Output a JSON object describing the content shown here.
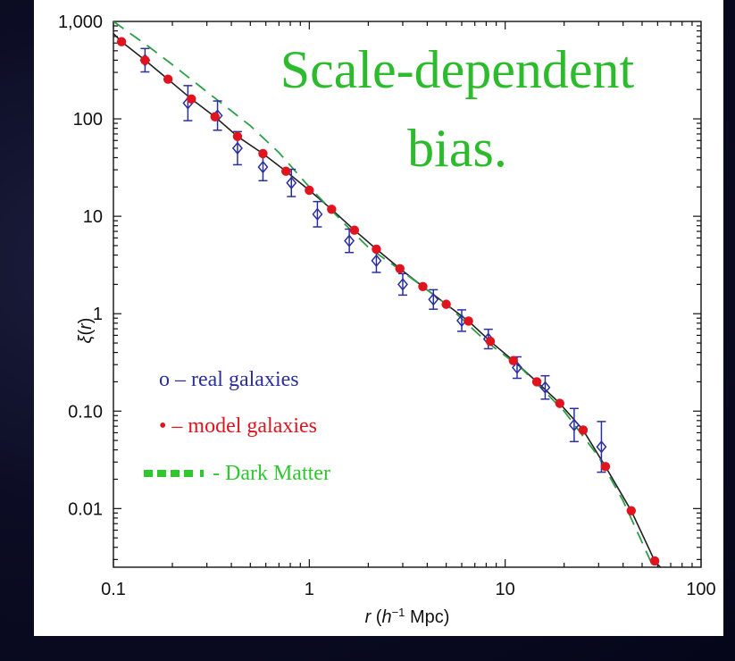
{
  "annotation": {
    "line1": "Scale-dependent",
    "line2": "bias.",
    "color": "#2dbb2d"
  },
  "legend": [
    {
      "symbol": "o",
      "text": "o – real galaxies",
      "color": "#2b2f9e"
    },
    {
      "symbol": "•",
      "text": "• – model galaxies",
      "color": "#e0141e"
    },
    {
      "symbol": "dashes",
      "text": "- Dark Matter",
      "color": "#2ec82e"
    }
  ],
  "chart_data": {
    "type": "scatter",
    "xscale": "log",
    "yscale": "log",
    "xlim": [
      0.1,
      100
    ],
    "ylim": [
      0.0025,
      1000
    ],
    "xlabel": "r (h⁻¹ Mpc)",
    "ylabel": "ξ(r)",
    "xticks": [
      {
        "value": 0.1,
        "label": "0.1"
      },
      {
        "value": 1,
        "label": "1"
      },
      {
        "value": 10,
        "label": "10"
      },
      {
        "value": 100,
        "label": "100"
      }
    ],
    "yticks": [
      {
        "value": 0.01,
        "label": "0.01"
      },
      {
        "value": 0.1,
        "label": "0.10"
      },
      {
        "value": 1,
        "label": "1"
      },
      {
        "value": 10,
        "label": "10"
      },
      {
        "value": 100,
        "label": "100"
      },
      {
        "value": 1000,
        "label": "1,000"
      }
    ],
    "series": [
      {
        "name": "real galaxies",
        "marker": "open-diamond-errorbar",
        "color": "#2b2f9e",
        "points": [
          {
            "x": 0.145,
            "y": 400,
            "err": 0.12
          },
          {
            "x": 0.24,
            "y": 145,
            "err": 0.18
          },
          {
            "x": 0.34,
            "y": 108,
            "err": 0.15
          },
          {
            "x": 0.43,
            "y": 50,
            "err": 0.17
          },
          {
            "x": 0.58,
            "y": 32,
            "err": 0.14
          },
          {
            "x": 0.81,
            "y": 22,
            "err": 0.14
          },
          {
            "x": 1.1,
            "y": 10.5,
            "err": 0.13
          },
          {
            "x": 1.6,
            "y": 5.6,
            "err": 0.12
          },
          {
            "x": 2.2,
            "y": 3.5,
            "err": 0.12
          },
          {
            "x": 3.0,
            "y": 2.0,
            "err": 0.11
          },
          {
            "x": 4.3,
            "y": 1.4,
            "err": 0.1
          },
          {
            "x": 6.0,
            "y": 0.85,
            "err": 0.11
          },
          {
            "x": 8.2,
            "y": 0.55,
            "err": 0.1
          },
          {
            "x": 11.5,
            "y": 0.28,
            "err": 0.11
          },
          {
            "x": 16.0,
            "y": 0.175,
            "err": 0.12
          },
          {
            "x": 22.5,
            "y": 0.072,
            "err": 0.17
          },
          {
            "x": 31.0,
            "y": 0.043,
            "err": 0.26
          }
        ]
      },
      {
        "name": "model galaxies",
        "marker": "filled-circle",
        "color": "#e0141e",
        "points": [
          {
            "x": 0.11,
            "y": 620
          },
          {
            "x": 0.145,
            "y": 400
          },
          {
            "x": 0.19,
            "y": 255
          },
          {
            "x": 0.25,
            "y": 160
          },
          {
            "x": 0.33,
            "y": 105
          },
          {
            "x": 0.43,
            "y": 66
          },
          {
            "x": 0.58,
            "y": 44
          },
          {
            "x": 0.76,
            "y": 29
          },
          {
            "x": 1.0,
            "y": 18.5
          },
          {
            "x": 1.3,
            "y": 11.8
          },
          {
            "x": 1.7,
            "y": 7.2
          },
          {
            "x": 2.2,
            "y": 4.6
          },
          {
            "x": 2.9,
            "y": 2.9
          },
          {
            "x": 3.8,
            "y": 1.9
          },
          {
            "x": 5.0,
            "y": 1.25
          },
          {
            "x": 6.5,
            "y": 0.84
          },
          {
            "x": 8.4,
            "y": 0.52
          },
          {
            "x": 11.0,
            "y": 0.33
          },
          {
            "x": 14.5,
            "y": 0.2
          },
          {
            "x": 19.0,
            "y": 0.12
          },
          {
            "x": 25.0,
            "y": 0.064
          },
          {
            "x": 32.5,
            "y": 0.027
          },
          {
            "x": 44.0,
            "y": 0.0095
          },
          {
            "x": 58.0,
            "y": 0.0029
          }
        ]
      },
      {
        "name": "model galaxies fit",
        "line": "solid",
        "color": "#222222",
        "points": [
          {
            "x": 0.1,
            "y": 750
          },
          {
            "x": 0.11,
            "y": 620
          },
          {
            "x": 0.145,
            "y": 400
          },
          {
            "x": 0.19,
            "y": 255
          },
          {
            "x": 0.25,
            "y": 160
          },
          {
            "x": 0.33,
            "y": 105
          },
          {
            "x": 0.43,
            "y": 66
          },
          {
            "x": 0.58,
            "y": 44
          },
          {
            "x": 0.76,
            "y": 29
          },
          {
            "x": 1.0,
            "y": 18.5
          },
          {
            "x": 1.3,
            "y": 11.8
          },
          {
            "x": 1.7,
            "y": 7.2
          },
          {
            "x": 2.2,
            "y": 4.6
          },
          {
            "x": 2.9,
            "y": 2.9
          },
          {
            "x": 3.8,
            "y": 1.9
          },
          {
            "x": 5.0,
            "y": 1.25
          },
          {
            "x": 6.5,
            "y": 0.84
          },
          {
            "x": 8.4,
            "y": 0.52
          },
          {
            "x": 11.0,
            "y": 0.33
          },
          {
            "x": 14.5,
            "y": 0.2
          },
          {
            "x": 19.0,
            "y": 0.12
          },
          {
            "x": 25.0,
            "y": 0.064
          },
          {
            "x": 32.5,
            "y": 0.027
          },
          {
            "x": 44.0,
            "y": 0.0095
          },
          {
            "x": 58.0,
            "y": 0.0029
          },
          {
            "x": 62.0,
            "y": 0.0025
          }
        ]
      },
      {
        "name": "Dark Matter",
        "line": "dashed",
        "color": "#2e9e48",
        "points": [
          {
            "x": 0.1,
            "y": 1000
          },
          {
            "x": 0.15,
            "y": 560
          },
          {
            "x": 0.2,
            "y": 360
          },
          {
            "x": 0.3,
            "y": 190
          },
          {
            "x": 0.5,
            "y": 85
          },
          {
            "x": 0.7,
            "y": 45
          },
          {
            "x": 1.0,
            "y": 20
          },
          {
            "x": 1.5,
            "y": 8.5
          },
          {
            "x": 2.0,
            "y": 4.8
          },
          {
            "x": 3.0,
            "y": 2.7
          },
          {
            "x": 5.0,
            "y": 1.25
          },
          {
            "x": 8.0,
            "y": 0.52
          },
          {
            "x": 12.0,
            "y": 0.28
          },
          {
            "x": 20.0,
            "y": 0.1
          },
          {
            "x": 30.0,
            "y": 0.034
          },
          {
            "x": 40.0,
            "y": 0.012
          },
          {
            "x": 50.0,
            "y": 0.0045
          },
          {
            "x": 57.0,
            "y": 0.0025
          }
        ]
      }
    ]
  }
}
